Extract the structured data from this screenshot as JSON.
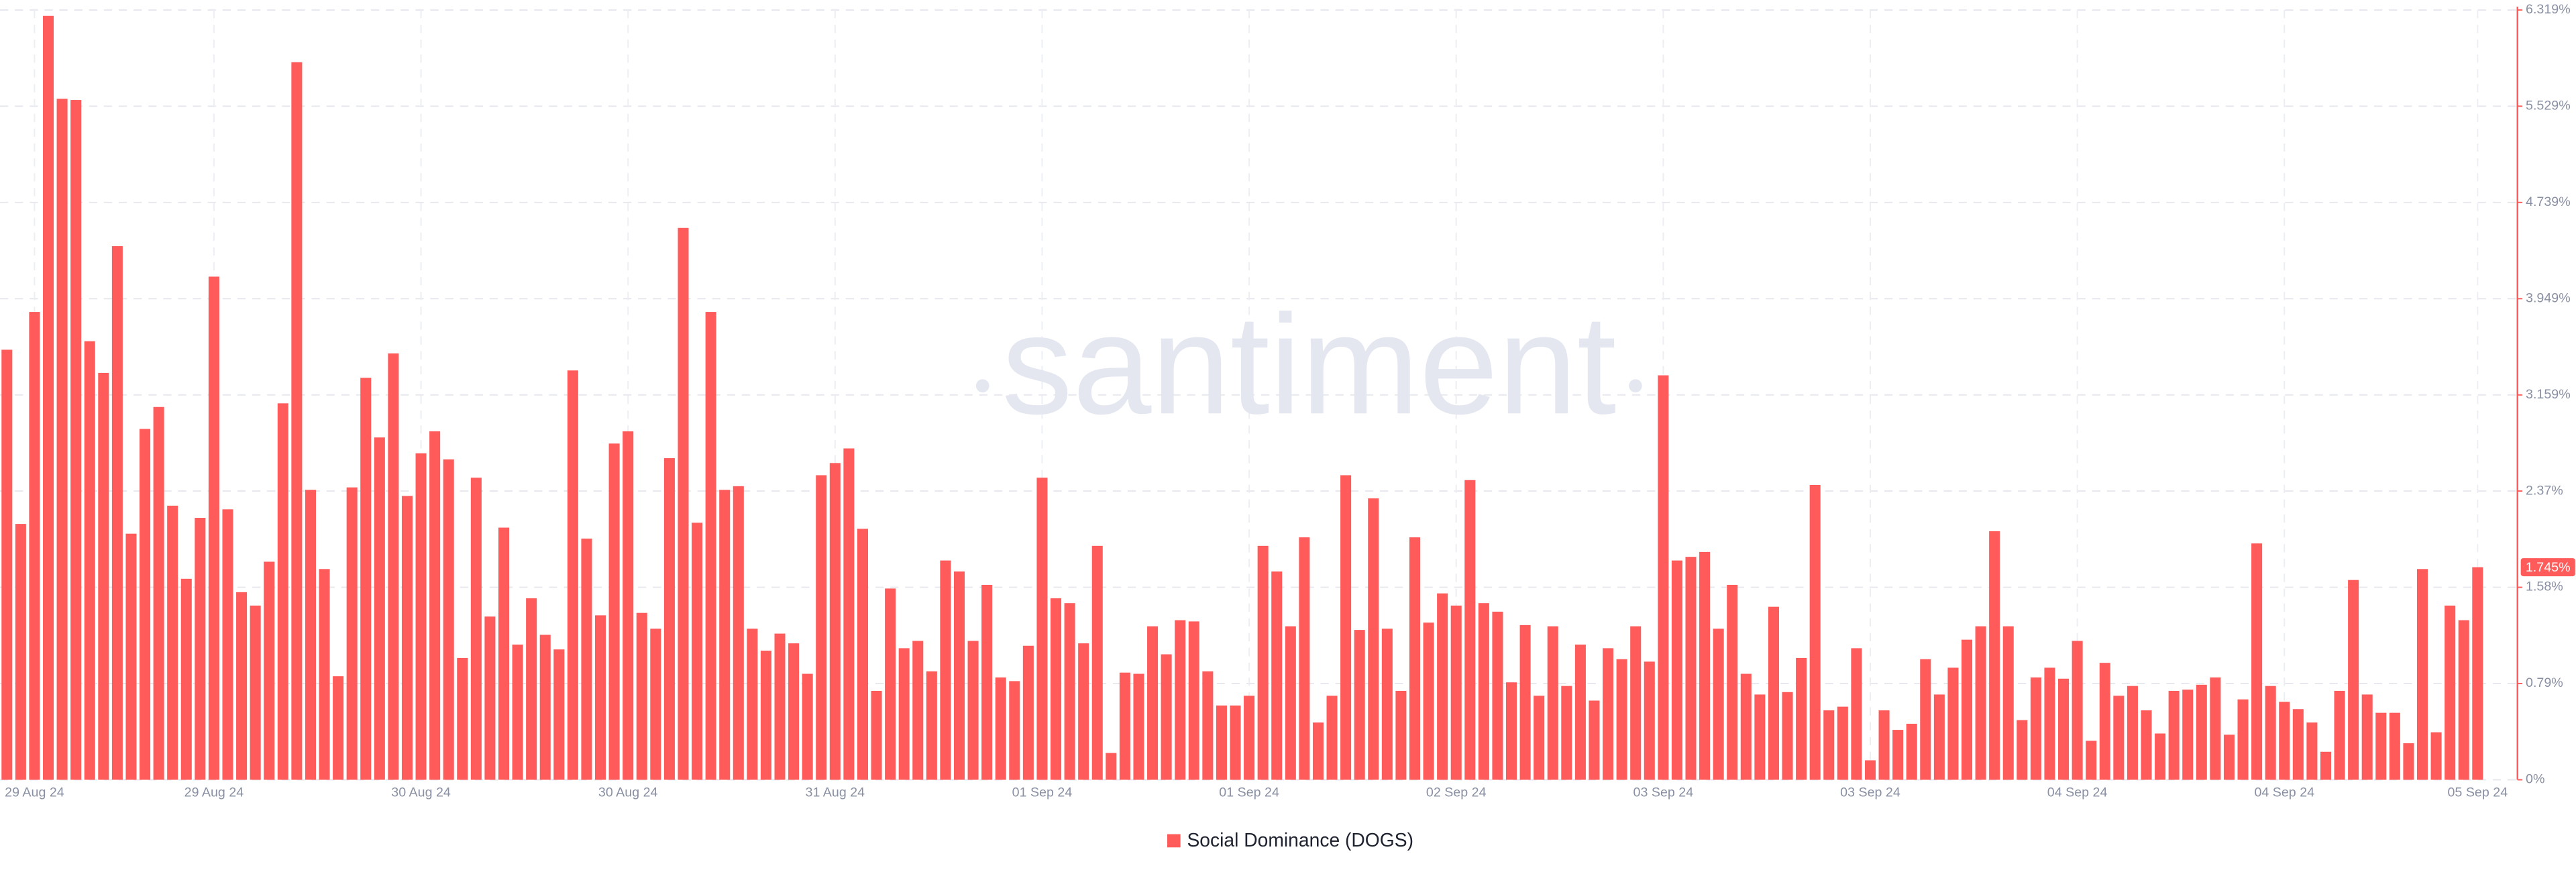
{
  "chart_data": {
    "type": "bar",
    "watermark": "santiment",
    "categories": [
      null,
      null,
      "29 Aug 24",
      null,
      null,
      null,
      null,
      null,
      null,
      null,
      null,
      null,
      null,
      null,
      null,
      "29 Aug 24",
      null,
      null,
      null,
      null,
      null,
      null,
      null,
      null,
      null,
      null,
      null,
      null,
      null,
      null,
      "30 Aug 24",
      null,
      null,
      null,
      null,
      null,
      null,
      null,
      null,
      null,
      null,
      null,
      null,
      null,
      null,
      "30 Aug 24",
      null,
      null,
      null,
      null,
      null,
      null,
      null,
      null,
      null,
      null,
      null,
      null,
      null,
      null,
      "31 Aug 24",
      null,
      null,
      null,
      null,
      null,
      null,
      null,
      null,
      null,
      null,
      null,
      null,
      null,
      null,
      "01 Sep 24",
      null,
      null,
      null,
      null,
      null,
      null,
      null,
      null,
      null,
      null,
      null,
      null,
      null,
      null,
      "01 Sep 24",
      null,
      null,
      null,
      null,
      null,
      null,
      null,
      null,
      null,
      null,
      null,
      null,
      null,
      null,
      "02 Sep 24",
      null,
      null,
      null,
      null,
      null,
      null,
      null,
      null,
      null,
      null,
      null,
      null,
      null,
      null,
      "03 Sep 24",
      null,
      null,
      null,
      null,
      null,
      null,
      null,
      null,
      null,
      null,
      null,
      null,
      null,
      null,
      "03 Sep 24",
      null,
      null,
      null,
      null,
      null,
      null,
      null,
      null,
      null,
      null,
      null,
      null,
      null,
      null,
      "04 Sep 24",
      null,
      null,
      null,
      null,
      null,
      null,
      null,
      null,
      null,
      null,
      null,
      null,
      null,
      null,
      "04 Sep 24",
      null,
      null,
      null,
      null,
      null,
      null,
      null,
      null,
      null,
      null,
      null,
      null,
      null,
      "05 Sep 24"
    ],
    "series": [
      {
        "name": "Social Dominance (DOGS)",
        "color": "#ff5b5b",
        "values": [
          3.53,
          2.1,
          3.84,
          6.27,
          5.59,
          5.58,
          3.6,
          3.34,
          4.38,
          2.02,
          2.88,
          3.06,
          2.25,
          1.65,
          2.15,
          4.13,
          2.22,
          1.54,
          1.43,
          1.79,
          3.09,
          5.89,
          2.38,
          1.73,
          0.85,
          2.4,
          3.3,
          2.81,
          3.5,
          2.33,
          2.68,
          2.86,
          2.63,
          1.0,
          2.48,
          1.34,
          2.07,
          1.11,
          1.49,
          1.19,
          1.07,
          3.36,
          1.98,
          1.35,
          2.76,
          2.86,
          1.37,
          1.24,
          2.64,
          4.53,
          2.11,
          3.84,
          2.38,
          2.41,
          1.24,
          1.06,
          1.2,
          1.12,
          0.87,
          2.5,
          2.6,
          2.72,
          2.06,
          0.73,
          1.57,
          1.08,
          1.14,
          0.89,
          1.8,
          1.71,
          1.14,
          1.6,
          0.84,
          0.81,
          1.1,
          2.48,
          1.49,
          1.45,
          1.12,
          1.92,
          0.22,
          0.88,
          0.87,
          1.26,
          1.03,
          1.31,
          1.3,
          0.89,
          0.61,
          0.61,
          0.69,
          1.92,
          1.71,
          1.26,
          1.99,
          0.47,
          0.69,
          2.5,
          1.23,
          2.31,
          1.24,
          0.73,
          1.99,
          1.29,
          1.53,
          1.43,
          2.46,
          1.45,
          1.38,
          0.8,
          1.27,
          0.69,
          1.26,
          0.77,
          1.11,
          0.65,
          1.08,
          0.99,
          1.26,
          0.97,
          3.32,
          1.8,
          1.83,
          1.87,
          1.24,
          1.6,
          0.87,
          0.7,
          1.42,
          0.72,
          1.0,
          2.42,
          0.57,
          0.6,
          1.08,
          0.16,
          0.57,
          0.41,
          0.46,
          0.99,
          0.7,
          0.92,
          1.15,
          1.26,
          2.04,
          1.26,
          0.49,
          0.84,
          0.92,
          0.83,
          1.14,
          0.32,
          0.96,
          0.69,
          0.77,
          0.57,
          0.38,
          0.73,
          0.74,
          0.78,
          0.84,
          0.37,
          0.66,
          1.94,
          0.77,
          0.64,
          0.58,
          0.47,
          0.23,
          0.73,
          1.64,
          0.7,
          0.55,
          0.55,
          0.3,
          1.73,
          0.39,
          1.43,
          1.31,
          1.745
        ],
        "value_labels": [
          null,
          null,
          null,
          null,
          null,
          null,
          null,
          null,
          null,
          null,
          null,
          null,
          null,
          null,
          null,
          null,
          null,
          null,
          null,
          null,
          null,
          null,
          null,
          null,
          null,
          null,
          null,
          null,
          null,
          null,
          null,
          null,
          null,
          null,
          null,
          null,
          null,
          null,
          null,
          null,
          null,
          null,
          null,
          null,
          null,
          null,
          null,
          null,
          null,
          null,
          null,
          null,
          null,
          null,
          null,
          null,
          null,
          null,
          null,
          null,
          null,
          null,
          null,
          null,
          null,
          null,
          null,
          null,
          null,
          null,
          null,
          null,
          null,
          null,
          null,
          null,
          null,
          null,
          null,
          null,
          null,
          null,
          null,
          null,
          null,
          null,
          null,
          null,
          null,
          null,
          null,
          null,
          null,
          null,
          null,
          null,
          null,
          null,
          null,
          null,
          null,
          null,
          null,
          null,
          null,
          null,
          null,
          null,
          null,
          null,
          null,
          null,
          null,
          null,
          null,
          null,
          null,
          null,
          null,
          null,
          null,
          null,
          null,
          null,
          null,
          null,
          null,
          null,
          null,
          null,
          null,
          null,
          null,
          null,
          null,
          null,
          null,
          null,
          null,
          null,
          null,
          null,
          null,
          null,
          null,
          null,
          null,
          null,
          null,
          null,
          null,
          null,
          null,
          null,
          null,
          null,
          null,
          null,
          null,
          null,
          null,
          null,
          null,
          null,
          null,
          null,
          null,
          null,
          null,
          null,
          null,
          null,
          null,
          null,
          null,
          null,
          null,
          null,
          null,
          "1.745%"
        ]
      }
    ],
    "ylim": [
      0,
      6.319
    ],
    "yticks": [
      {
        "value": 0,
        "label": "0%"
      },
      {
        "value": 0.79,
        "label": "0.79%"
      },
      {
        "value": 1.58,
        "label": "1.58%"
      },
      {
        "value": 2.37,
        "label": "2.37%"
      },
      {
        "value": 3.159,
        "label": "3.159%"
      },
      {
        "value": 3.949,
        "label": "3.949%"
      },
      {
        "value": 4.739,
        "label": "4.739%"
      },
      {
        "value": 5.529,
        "label": "5.529%"
      },
      {
        "value": 6.319,
        "label": "6.319%"
      }
    ],
    "grid": true
  }
}
